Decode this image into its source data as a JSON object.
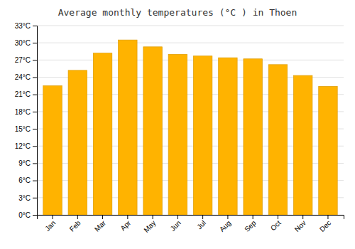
{
  "chart_data": {
    "type": "bar",
    "title": "Average monthly temperatures (°C ) in Thoen",
    "categories": [
      "Jan",
      "Feb",
      "Mar",
      "Apr",
      "May",
      "Jun",
      "Jul",
      "Aug",
      "Sep",
      "Oct",
      "Nov",
      "Dec"
    ],
    "values": [
      22.5,
      25.2,
      28.2,
      30.5,
      29.3,
      28.0,
      27.7,
      27.4,
      27.2,
      26.2,
      24.3,
      22.4
    ],
    "color": "#FFB300",
    "ylim": [
      0,
      33
    ],
    "yticks": [
      {
        "value": 0,
        "label": "0°C"
      },
      {
        "value": 3,
        "label": "3°C"
      },
      {
        "value": 6,
        "label": "6°C"
      },
      {
        "value": 9,
        "label": "9°C"
      },
      {
        "value": 12,
        "label": "12°C"
      },
      {
        "value": 15,
        "label": "15°C"
      },
      {
        "value": 18,
        "label": "18°C"
      },
      {
        "value": 21,
        "label": "21°C"
      },
      {
        "value": 24,
        "label": "24°C"
      },
      {
        "value": 27,
        "label": "27°C"
      },
      {
        "value": 30,
        "label": "30°C"
      },
      {
        "value": 33,
        "label": "33°C"
      }
    ],
    "grid": true
  }
}
